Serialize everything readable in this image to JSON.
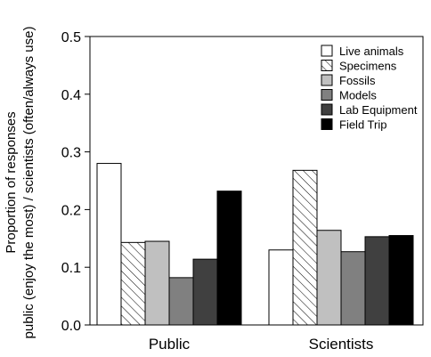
{
  "chart_data": {
    "type": "bar",
    "title": "",
    "xlabel": "",
    "ylabel_lines": [
      "Proportion of responses",
      "public (enjoy the most) / scientists (often/always use)"
    ],
    "categories": [
      "Public",
      "Scientists"
    ],
    "ylim": [
      0,
      0.5
    ],
    "yticks": [
      "0.0",
      "0.1",
      "0.2",
      "0.3",
      "0.4",
      "0.5"
    ],
    "legend_position": "top-right",
    "grid": false,
    "series": [
      {
        "name": "Live animals",
        "values": [
          0.28,
          0.13
        ],
        "fill": "#ffffff",
        "pattern": "none"
      },
      {
        "name": "Specimens",
        "values": [
          0.143,
          0.268
        ],
        "fill": "#ffffff",
        "pattern": "hatch"
      },
      {
        "name": "Fossils",
        "values": [
          0.145,
          0.164
        ],
        "fill": "#c0c0c0",
        "pattern": "none"
      },
      {
        "name": "Models",
        "values": [
          0.082,
          0.127
        ],
        "fill": "#808080",
        "pattern": "none"
      },
      {
        "name": "Lab Equipment",
        "values": [
          0.114,
          0.153
        ],
        "fill": "#404040",
        "pattern": "none"
      },
      {
        "name": "Field Trip",
        "values": [
          0.232,
          0.155
        ],
        "fill": "#000000",
        "pattern": "none"
      }
    ]
  }
}
